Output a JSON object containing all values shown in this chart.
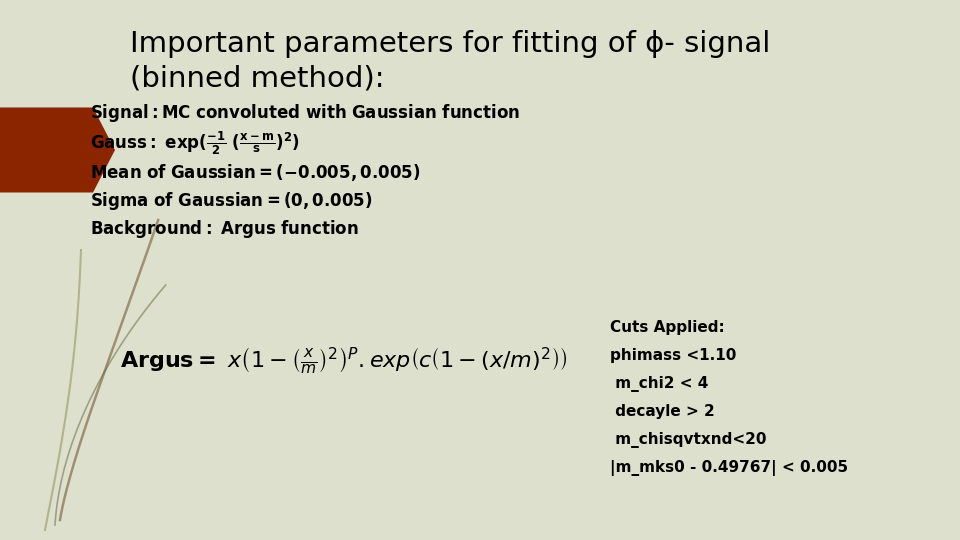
{
  "title_line1": "Important parameters for fitting of ϕ- signal",
  "title_line2": "(binned method):",
  "bg_color": "#dde0cc",
  "arrow_color": "#8b2500",
  "title_color": "#000000",
  "cuts_title": "Cuts Applied:",
  "cuts_lines": [
    "phimass <1.10",
    " m_chi2 < 4",
    " decayle > 2",
    " m_chisqvtxnd<20",
    "|m_mks0 - 0.49767| < 0.005"
  ],
  "vine_color1": "#9b9b6a",
  "vine_color2": "#8b7355",
  "vine_color3": "#6b6b4a"
}
